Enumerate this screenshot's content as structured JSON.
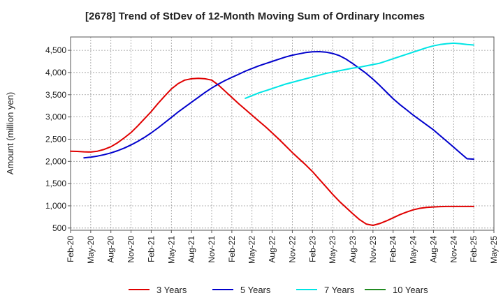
{
  "chart_data": {
    "type": "line",
    "title": "[2678]  Trend of StDev of 12-Month Moving Sum of Ordinary Incomes",
    "xlabel": "",
    "ylabel": "Amount (million yen)",
    "ylim": [
      450,
      4800
    ],
    "yticks": [
      500,
      1000,
      1500,
      2000,
      2500,
      3000,
      3500,
      4000,
      4500
    ],
    "ytick_labels": [
      "500",
      "1,000",
      "1,500",
      "2,000",
      "2,500",
      "3,000",
      "3,500",
      "4,000",
      "4,500"
    ],
    "xlim": [
      0,
      63
    ],
    "xticks": [
      0,
      3,
      6,
      9,
      12,
      15,
      18,
      21,
      24,
      27,
      30,
      33,
      36,
      39,
      42,
      45,
      48,
      51,
      54,
      57,
      60,
      63
    ],
    "xtick_labels": [
      "Feb-20",
      "May-20",
      "Aug-20",
      "Nov-20",
      "Feb-21",
      "May-21",
      "Aug-21",
      "Nov-21",
      "Feb-22",
      "May-22",
      "Aug-22",
      "Nov-22",
      "Feb-23",
      "May-23",
      "Aug-23",
      "Nov-23",
      "Feb-24",
      "May-24",
      "Aug-24",
      "Nov-24",
      "Feb-25",
      "May-25"
    ],
    "series": [
      {
        "name": "3 Years",
        "color": "#e00000",
        "x": [
          0,
          1,
          2,
          3,
          4,
          5,
          6,
          7,
          8,
          9,
          10,
          11,
          12,
          13,
          14,
          15,
          16,
          17,
          18,
          19,
          20,
          21,
          22,
          23,
          24,
          25,
          26,
          27,
          28,
          29,
          30,
          31,
          32,
          33,
          34,
          35,
          36,
          37,
          38,
          39,
          40,
          41,
          42,
          43,
          44,
          45,
          46,
          47,
          48,
          49,
          50,
          51,
          52,
          53,
          54,
          55,
          56,
          57,
          58,
          59,
          60
        ],
        "values": [
          2230,
          2225,
          2215,
          2210,
          2230,
          2270,
          2330,
          2420,
          2530,
          2650,
          2800,
          2960,
          3120,
          3300,
          3470,
          3630,
          3750,
          3830,
          3860,
          3870,
          3860,
          3830,
          3720,
          3580,
          3440,
          3300,
          3170,
          3040,
          2910,
          2780,
          2640,
          2500,
          2350,
          2200,
          2060,
          1920,
          1770,
          1600,
          1430,
          1260,
          1100,
          960,
          820,
          690,
          590,
          560,
          600,
          660,
          730,
          800,
          860,
          910,
          945,
          965,
          975,
          982,
          985,
          985,
          985,
          985,
          985
        ]
      },
      {
        "name": "5 Years",
        "color": "#0000cc",
        "x": [
          2,
          3,
          4,
          5,
          6,
          7,
          8,
          9,
          10,
          11,
          12,
          13,
          14,
          15,
          16,
          17,
          18,
          19,
          20,
          21,
          22,
          23,
          24,
          25,
          26,
          27,
          28,
          29,
          30,
          31,
          32,
          33,
          34,
          35,
          36,
          37,
          38,
          39,
          40,
          41,
          42,
          43,
          44,
          45,
          46,
          47,
          48,
          49,
          50,
          51,
          52,
          53,
          54,
          55,
          56,
          57,
          58,
          59,
          60
        ],
        "values": [
          2080,
          2095,
          2120,
          2150,
          2190,
          2240,
          2300,
          2370,
          2450,
          2540,
          2640,
          2750,
          2870,
          2990,
          3110,
          3220,
          3330,
          3440,
          3550,
          3650,
          3740,
          3820,
          3890,
          3960,
          4030,
          4090,
          4150,
          4200,
          4250,
          4300,
          4350,
          4390,
          4420,
          4450,
          4465,
          4470,
          4460,
          4430,
          4380,
          4300,
          4200,
          4090,
          3980,
          3850,
          3710,
          3560,
          3410,
          3280,
          3160,
          3040,
          2930,
          2820,
          2710,
          2580,
          2450,
          2320,
          2190,
          2060,
          2050
        ]
      },
      {
        "name": "7 Years",
        "color": "#00e5e5",
        "x": [
          26,
          27,
          28,
          29,
          30,
          31,
          32,
          33,
          34,
          35,
          36,
          37,
          38,
          39,
          40,
          41,
          42,
          43,
          44,
          45,
          46,
          47,
          48,
          49,
          50,
          51,
          52,
          53,
          54,
          55,
          56,
          57,
          58,
          59,
          60
        ],
        "values": [
          3420,
          3480,
          3540,
          3590,
          3640,
          3690,
          3740,
          3780,
          3820,
          3860,
          3900,
          3940,
          3980,
          4010,
          4040,
          4070,
          4100,
          4120,
          4150,
          4180,
          4210,
          4260,
          4310,
          4360,
          4410,
          4460,
          4510,
          4560,
          4600,
          4630,
          4650,
          4660,
          4650,
          4630,
          4620
        ]
      },
      {
        "name": "10 Years",
        "color": "#228b22",
        "x": [],
        "values": []
      }
    ],
    "legend_position": "bottom-center",
    "grid": true
  }
}
